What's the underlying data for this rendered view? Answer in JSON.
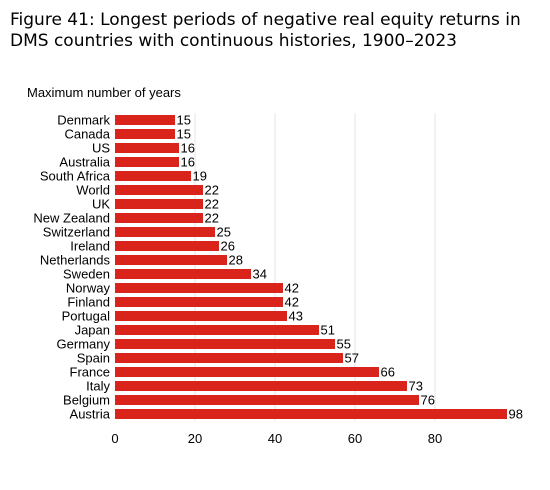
{
  "chart_data": {
    "type": "bar",
    "orientation": "horizontal",
    "title": "Figure 41: Longest periods of negative real equity returns in DMS countries with continuous histories, 1900–2023",
    "ylabel": "Maximum number of years",
    "xlabel": "",
    "categories": [
      "Denmark",
      "Canada",
      "US",
      "Australia",
      "South Africa",
      "World",
      "UK",
      "New Zealand",
      "Switzerland",
      "Ireland",
      "Netherlands",
      "Sweden",
      "Norway",
      "Finland",
      "Portugal",
      "Japan",
      "Germany",
      "Spain",
      "France",
      "Italy",
      "Belgium",
      "Austria"
    ],
    "values": [
      15,
      15,
      16,
      16,
      19,
      22,
      22,
      22,
      25,
      26,
      28,
      34,
      42,
      42,
      43,
      51,
      55,
      57,
      66,
      73,
      76,
      98
    ],
    "xlim": [
      0,
      100
    ],
    "xticks": [
      0,
      20,
      40,
      60,
      80
    ],
    "grid": true,
    "bar_color": "#d9241c",
    "grid_color": "#e6e6e6"
  }
}
